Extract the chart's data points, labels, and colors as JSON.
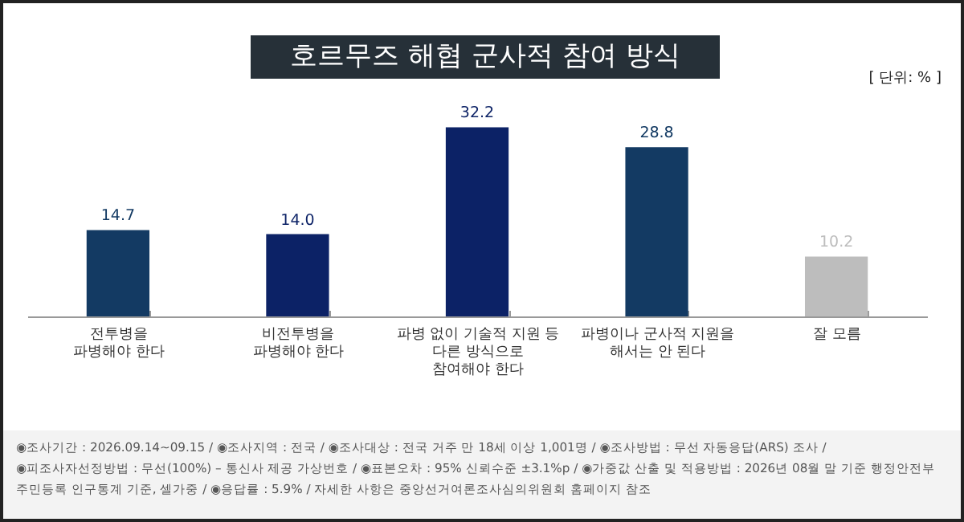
{
  "chart_data": {
    "type": "bar",
    "title": "호르무즈 해협 군사적 참여 방식",
    "categories": [
      "전투병을\n파병해야 한다",
      "비전투병을\n파병해야 한다",
      "파병 없이 기술적 지원 등\n다른 방식으로\n참여해야 한다",
      "파병이나 군사적 지원을\n해서는 안 된다",
      "잘 모름"
    ],
    "values": [
      14.7,
      14.0,
      32.2,
      28.8,
      10.2
    ],
    "value_labels": [
      "14.7",
      "14.0",
      "32.2",
      "28.8",
      "10.2"
    ],
    "colors": [
      "#133a63",
      "#0c2266",
      "#0c2266",
      "#133a63",
      "#bdbdbd"
    ],
    "annotations": [
      "[ 단위: % ]",
      "◉조사기간 : 2026.09.14~09.15 / ◉조사지역 : 전국 / ◉조사대상 : 전국 거주 만 18세 이상 1,001명 / ◉조사방법 : 무선 자동응답(ARS) 조사 /",
      "◉피조사자선정방법 : 무선(100%) – 통신사 제공 가상번호 / ◉표본오차 : 95% 신뢰수준 ±3.1%p / ◉가중값 산출 및 적용방법 : 2026년 08월 말 기준 행정안전부",
      "주민등록 인구통계 기준, 셀가중 / ◉응답률 : 5.9% / 자세한 사항은 중앙선거여론조사심의위원회 홈페이지 참조"
    ]
  }
}
